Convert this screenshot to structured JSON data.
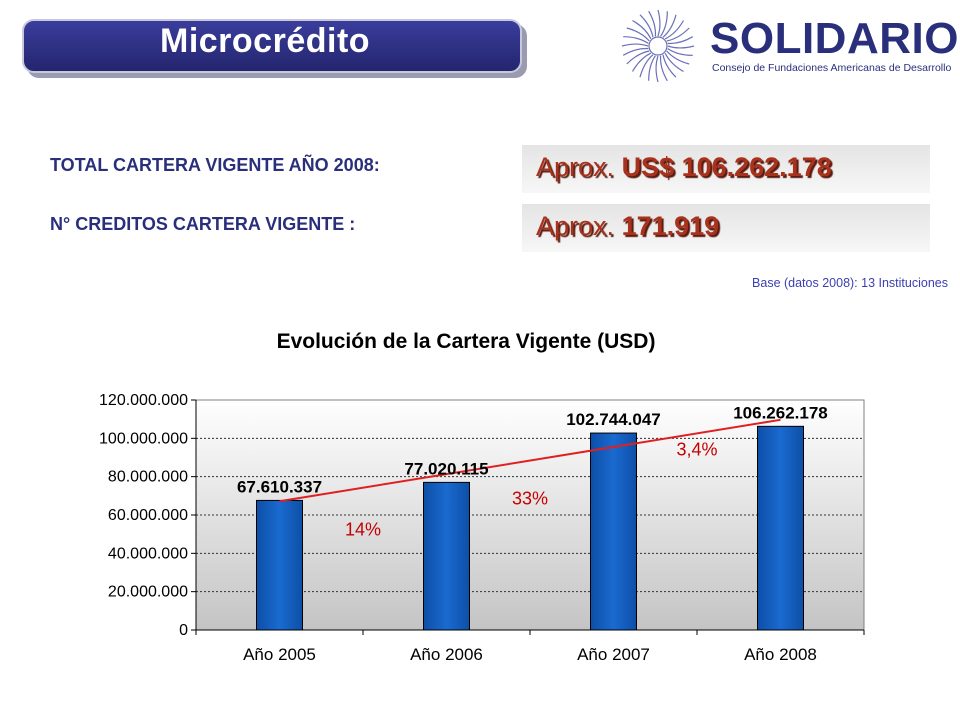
{
  "header": {
    "title": "Microcrédito",
    "brand": "SOLIDARIOS",
    "brand_subtitle": "Consejo de Fundaciones Americanas de Desarrollo",
    "logo_icon": "sun-burst-logo-icon"
  },
  "stats": [
    {
      "label": "TOTAL CARTERA VIGENTE AÑO 2008:",
      "prefix": "Aprox.",
      "value": "US$ 106.262.178"
    },
    {
      "label": "N° CREDITOS CARTERA VIGENTE :",
      "prefix": "Aprox.",
      "value": "171.919"
    }
  ],
  "base_note": "Base (datos 2008): 13 Instituciones",
  "colors": {
    "bar": "#1560c0",
    "trend": "#e02020",
    "growth_text": "#c40000",
    "brand": "#2a2f7c"
  },
  "chart_data": {
    "type": "bar",
    "title": "Evolución de la Cartera Vigente (USD)",
    "categories": [
      "Año 2005",
      "Año 2006",
      "Año 2007",
      "Año 2008"
    ],
    "values": [
      67610337,
      77020115,
      102744047,
      106262178
    ],
    "value_labels": [
      "67.610.337",
      "77.020.115",
      "102.744.047",
      "106.262.178"
    ],
    "ylim": [
      0,
      120000000
    ],
    "yticks": [
      0,
      20000000,
      40000000,
      60000000,
      80000000,
      100000000,
      120000000
    ],
    "ytick_labels": [
      "0",
      "20.000.000",
      "40.000.000",
      "60.000.000",
      "80.000.000",
      "100.000.000",
      "120.000.000"
    ],
    "grid": true,
    "trendline": "linear",
    "growth_labels": [
      "14%",
      "33%",
      "3,4%"
    ]
  }
}
